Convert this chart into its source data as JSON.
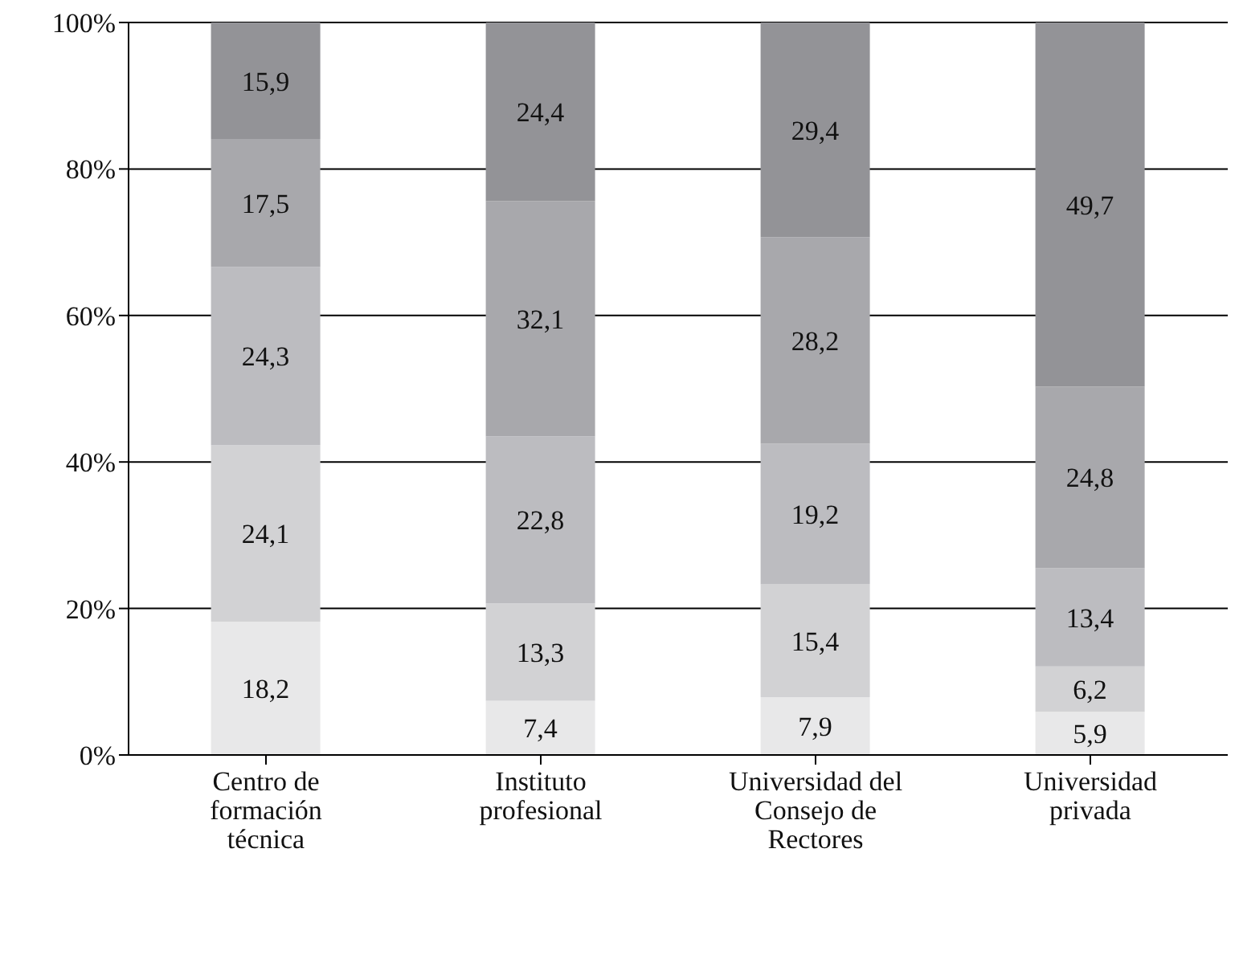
{
  "chart_data": {
    "type": "bar",
    "stacked": true,
    "categories": [
      "Centro de formación técnica",
      "Instituto profesional",
      "Universidad del Consejo de Rectores",
      "Universidad privada"
    ],
    "series": [
      {
        "color": "#e8e8e9",
        "values": [
          18.2,
          7.4,
          7.9,
          5.9
        ],
        "value_labels": [
          "18,2",
          "7,4",
          "7,9",
          "5,9"
        ]
      },
      {
        "color": "#d2d2d4",
        "values": [
          24.1,
          13.3,
          15.4,
          6.2
        ],
        "value_labels": [
          "24,1",
          "13,3",
          "15,4",
          "6,2"
        ]
      },
      {
        "color": "#bcbcc0",
        "values": [
          24.3,
          22.8,
          19.2,
          13.4
        ],
        "value_labels": [
          "24,3",
          "22,8",
          "19,2",
          "13,4"
        ]
      },
      {
        "color": "#a8a8ac",
        "values": [
          17.5,
          32.1,
          28.2,
          24.8
        ],
        "value_labels": [
          "17,5",
          "32,1",
          "28,2",
          "24,8"
        ]
      },
      {
        "color": "#939397",
        "values": [
          15.9,
          24.4,
          29.4,
          49.7
        ],
        "value_labels": [
          "15,9",
          "24,4",
          "29,4",
          "49,7"
        ]
      }
    ],
    "ylim": [
      0,
      100
    ],
    "yticks": [
      {
        "value": 0,
        "label": "0%"
      },
      {
        "value": 20,
        "label": "20%"
      },
      {
        "value": 40,
        "label": "40%"
      },
      {
        "value": 60,
        "label": "60%"
      },
      {
        "value": 80,
        "label": "80%"
      },
      {
        "value": 100,
        "label": "100%"
      }
    ],
    "grid": "y",
    "legend": false
  }
}
